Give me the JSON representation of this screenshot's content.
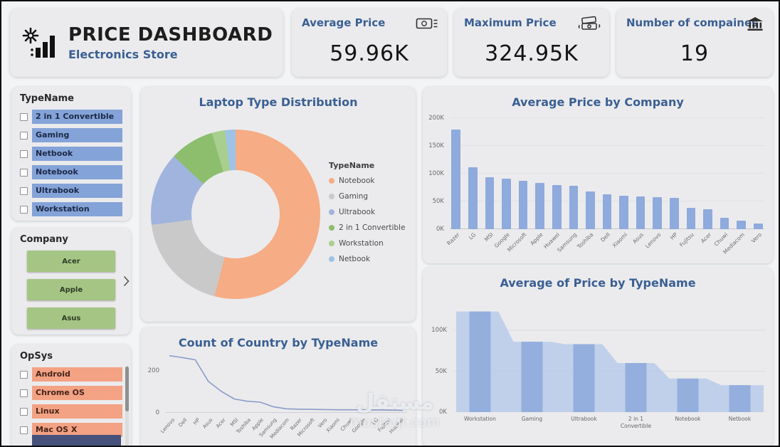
{
  "header": {
    "title": "PRICE DASHBOARD",
    "subtitle": "Electronics Store"
  },
  "kpis": [
    {
      "label": "Average Price",
      "value": "59.96K",
      "icon": "banknote-icon"
    },
    {
      "label": "Maximum Price",
      "value": "324.95K",
      "icon": "cash-stack-icon"
    },
    {
      "label": "Number of compaines",
      "value": "19",
      "icon": "bank-icon"
    }
  ],
  "slicers": {
    "typename": {
      "title": "TypeName",
      "items": [
        "2 in 1 Convertible",
        "Gaming",
        "Netbook",
        "Notebook",
        "Ultrabook",
        "Workstation"
      ],
      "item_color": "#84A3D8"
    },
    "company": {
      "title": "Company",
      "items": [
        "Acer",
        "Apple",
        "Asus"
      ],
      "item_color": "#A5C584"
    },
    "opsys": {
      "title": "OpSys",
      "items": [
        "Android",
        "Chrome OS",
        "Linux",
        "Mac OS X"
      ],
      "item_color": "#F3A284"
    }
  },
  "watermark": {
    "arabic": "مستقل",
    "latin": "mostaql.com"
  },
  "chart_data": [
    {
      "type": "pie",
      "donut": true,
      "title": "Laptop Type Distribution",
      "legend_title": "TypeName",
      "legend_position": "right",
      "labels": [
        "Notebook",
        "Gaming",
        "Ultrabook",
        "2 in 1 Convertible",
        "Workstation",
        "Netbook"
      ],
      "values": [
        54,
        19,
        14,
        8.5,
        2.5,
        2
      ],
      "colors": [
        "#F6AC84",
        "#C9C9C9",
        "#A0B4DD",
        "#8CBE6E",
        "#A9CF8E",
        "#9DC3E6"
      ]
    },
    {
      "type": "bar",
      "title": "Average Price by Company",
      "categories": [
        "Razer",
        "LG",
        "MSI",
        "Google",
        "Microsoft",
        "Apple",
        "Huawei",
        "Samsung",
        "Toshiba",
        "Dell",
        "Xiaomi",
        "Asus",
        "Lenovo",
        "HP",
        "Fujitsu",
        "Acer",
        "Chuwi",
        "Mediacom",
        "Vero"
      ],
      "values": [
        180,
        112,
        93,
        91,
        87,
        83,
        80,
        78,
        68,
        63,
        60,
        59,
        58,
        57,
        38,
        36,
        20,
        15,
        10
      ],
      "unit": "K",
      "ylim": [
        0,
        200
      ],
      "ytick_values": [
        0,
        50,
        100,
        150,
        200
      ],
      "ytick_labels": [
        "0K",
        "50K",
        "100K",
        "150K",
        "200K"
      ],
      "bar_color": "#8FAADC",
      "grid": true
    },
    {
      "type": "line",
      "title": "Count of Country by TypeName",
      "categories": [
        "Lenovo",
        "Dell",
        "HP",
        "Asus",
        "Acer",
        "MSI",
        "Toshiba",
        "Apple",
        "Samsung",
        "Mediacom",
        "Razer",
        "Microsoft",
        "Vero",
        "Xiaomi",
        "Chuwi",
        "Google",
        "LG",
        "Fujitsu",
        "Huawei"
      ],
      "values": [
        290,
        280,
        268,
        155,
        102,
        62,
        50,
        45,
        21,
        10,
        8,
        7,
        6,
        5,
        5,
        4,
        4,
        3,
        2
      ],
      "ylim": [
        0,
        300
      ],
      "ytick_values": [
        0,
        200
      ],
      "ytick_labels": [
        "0",
        "200"
      ],
      "line_color": "#8A9CC8"
    },
    {
      "type": "area",
      "title": "Average of Price by TypeName",
      "categories": [
        "Workstation",
        "Gaming",
        "Ultrabook",
        "2 in 1 Convertible",
        "Notebook",
        "Netbook"
      ],
      "values": [
        123,
        86,
        83,
        60,
        41,
        33
      ],
      "unit": "K",
      "ylim": [
        0,
        140
      ],
      "ytick_values": [
        0,
        50,
        100
      ],
      "ytick_labels": [
        "0K",
        "50K",
        "100K"
      ],
      "area_color": "#B7C9E8",
      "bar_color": "#8FAADC",
      "grid": true
    }
  ]
}
